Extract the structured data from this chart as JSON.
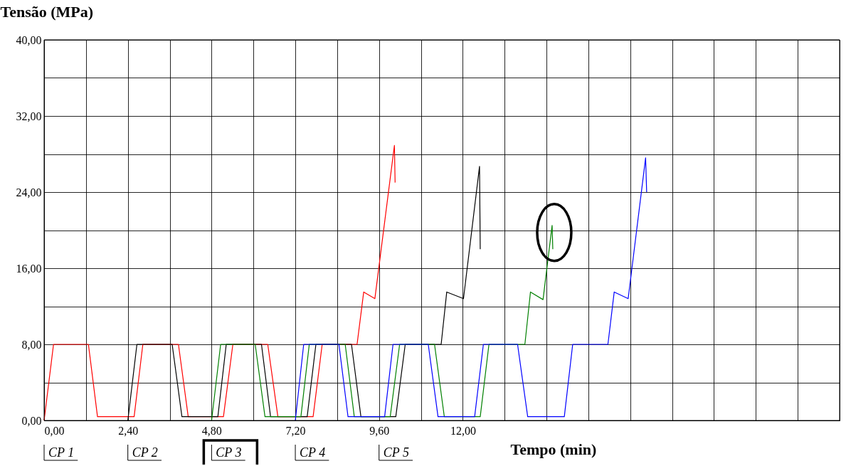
{
  "chart_data": {
    "type": "line",
    "ylabel": "Tensão (MPa)",
    "xlabel": "Tempo (min)",
    "xlim": [
      0,
      22.8
    ],
    "ylim": [
      0,
      40
    ],
    "xticks": [
      {
        "value": 0,
        "label": "0,00"
      },
      {
        "value": 1.2,
        "label": null
      },
      {
        "value": 2.4,
        "label": "2,40"
      },
      {
        "value": 3.6,
        "label": null
      },
      {
        "value": 4.8,
        "label": "4,80"
      },
      {
        "value": 6,
        "label": null
      },
      {
        "value": 7.2,
        "label": "7,20"
      },
      {
        "value": 8.4,
        "label": null
      },
      {
        "value": 9.6,
        "label": "9,60"
      },
      {
        "value": 10.8,
        "label": null
      },
      {
        "value": 12,
        "label": "12,00"
      },
      {
        "value": 13.2,
        "label": null
      },
      {
        "value": 14.4,
        "label": null
      },
      {
        "value": 15.6,
        "label": null
      },
      {
        "value": 16.8,
        "label": null
      },
      {
        "value": 18,
        "label": null
      },
      {
        "value": 19.2,
        "label": null
      },
      {
        "value": 20.4,
        "label": null
      },
      {
        "value": 21.6,
        "label": null
      },
      {
        "value": 22.8,
        "label": null
      }
    ],
    "yticks": [
      {
        "value": 0,
        "label": "0,00"
      },
      {
        "value": 4,
        "label": null
      },
      {
        "value": 8,
        "label": "8,00"
      },
      {
        "value": 12,
        "label": null
      },
      {
        "value": 16,
        "label": "16,00"
      },
      {
        "value": 20,
        "label": null
      },
      {
        "value": 24,
        "label": "24,00"
      },
      {
        "value": 28,
        "label": null
      },
      {
        "value": 32,
        "label": "32,00"
      },
      {
        "value": 36,
        "label": null
      },
      {
        "value": 40,
        "label": "40,00"
      }
    ],
    "grid": true,
    "line_style": "solid",
    "series": [
      {
        "color": "#ff0000",
        "x": [
          0,
          0.27,
          1.27,
          1.53,
          2.58,
          2.83,
          3.85,
          4.13,
          5.14,
          5.41,
          6.41,
          6.7,
          7.71,
          7.97,
          8.97,
          9.16,
          9.48,
          10.04,
          10.06
        ],
        "values": [
          0,
          8,
          8,
          0.4,
          0.4,
          8,
          8,
          0.4,
          0.4,
          8,
          8,
          0.4,
          0.4,
          8,
          8,
          13.5,
          12.8,
          28.9,
          25
        ]
      },
      {
        "color": "#000000",
        "x": [
          2.4,
          2.66,
          3.67,
          3.95,
          4.98,
          5.22,
          6.23,
          6.49,
          7.54,
          7.79,
          8.81,
          9.08,
          10.08,
          10.35,
          11.38,
          11.54,
          12.02,
          12.48,
          12.5
        ],
        "values": [
          0,
          8,
          8,
          0.4,
          0.4,
          8,
          8,
          0.4,
          0.4,
          8,
          8,
          0.4,
          0.4,
          8,
          8,
          13.5,
          12.8,
          26.7,
          18
        ]
      },
      {
        "color": "#008000",
        "x": [
          4.8,
          5.06,
          6.05,
          6.33,
          7.36,
          7.6,
          8.63,
          8.89,
          9.92,
          10.19,
          11.19,
          11.47,
          12.5,
          12.75,
          13.78,
          13.94,
          14.3,
          14.56,
          14.58
        ],
        "values": [
          0,
          8,
          8,
          0.4,
          0.4,
          8,
          8,
          0.4,
          0.4,
          8,
          8,
          0.4,
          0.4,
          8,
          8,
          13.5,
          12.7,
          20.5,
          18
        ]
      },
      {
        "color": "#0000ff",
        "x": [
          7.2,
          7.44,
          8.45,
          8.71,
          9.76,
          10.0,
          11.01,
          11.29,
          12.34,
          12.59,
          13.57,
          13.86,
          14.91,
          15.15,
          16.16,
          16.34,
          16.74,
          17.24,
          17.27
        ],
        "values": [
          0,
          8,
          8,
          0.4,
          0.4,
          8,
          8,
          0.4,
          0.4,
          8,
          8,
          0.4,
          0.4,
          8,
          8,
          13.5,
          12.8,
          27.6,
          24
        ]
      }
    ],
    "annotations": [
      "CP 1",
      "CP 2",
      "CP 3",
      "CP 4",
      "CP 5"
    ]
  }
}
